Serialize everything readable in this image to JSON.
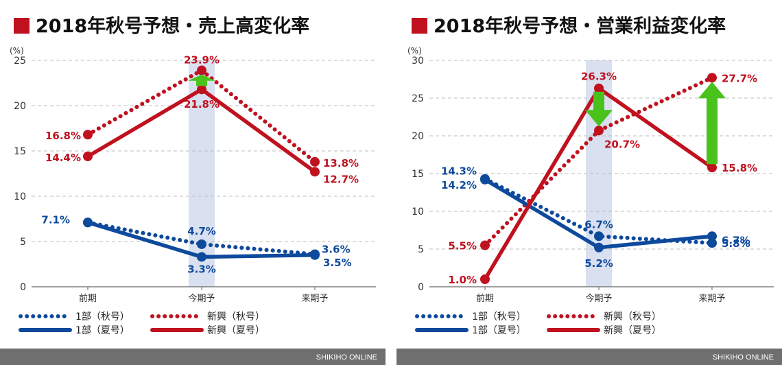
{
  "footer_brand": "SHIKIHO ONLINE",
  "colors": {
    "red": "#c0111f",
    "blue": "#0e4a9c",
    "arrow": "#49c21c",
    "highlight": "#d9e0f0",
    "grid": "#bdbdbd",
    "footer": "#6f6f6f"
  },
  "chart_data": [
    {
      "type": "line",
      "title": "2018年秋号予想・売上高変化率",
      "unit": "(%)",
      "categories": [
        "前期",
        "今期予",
        "来期予"
      ],
      "ylim": [
        0,
        25
      ],
      "yticks": [
        0,
        5,
        10,
        15,
        20,
        25
      ],
      "grid": true,
      "highlight_category": "今期予",
      "series": [
        {
          "name": "1部（秋号）",
          "color": "blue",
          "dash": true,
          "values": [
            7.1,
            4.7,
            3.6
          ],
          "labels": [
            "",
            "4.7%",
            "3.6%"
          ]
        },
        {
          "name": "新興（秋号）",
          "color": "red",
          "dash": true,
          "values": [
            16.8,
            23.9,
            13.8
          ],
          "labels": [
            "16.8%",
            "23.9%",
            "13.8%"
          ]
        },
        {
          "name": "1部（夏号）",
          "color": "blue",
          "dash": false,
          "values": [
            7.1,
            3.3,
            3.5
          ],
          "labels": [
            "7.1%",
            "3.3%",
            "3.5%"
          ]
        },
        {
          "name": "新興（夏号）",
          "color": "red",
          "dash": false,
          "values": [
            14.4,
            21.8,
            12.7
          ],
          "labels": [
            "14.4%",
            "21.8%",
            "12.7%"
          ]
        }
      ],
      "arrows": [
        {
          "category": "今期予",
          "from": 21.8,
          "to": 23.9,
          "direction": "up"
        }
      ]
    },
    {
      "type": "line",
      "title": "2018年秋号予想・営業利益変化率",
      "unit": "(%)",
      "categories": [
        "前期",
        "今期予",
        "来期予"
      ],
      "ylim": [
        0,
        30
      ],
      "yticks": [
        0,
        5,
        10,
        15,
        20,
        25,
        30
      ],
      "grid": true,
      "highlight_category": "今期予",
      "series": [
        {
          "name": "1部（秋号）",
          "color": "blue",
          "dash": true,
          "values": [
            14.3,
            6.7,
            5.8
          ],
          "labels": [
            "14.3%",
            "6.7%",
            "5.8%"
          ]
        },
        {
          "name": "新興（秋号）",
          "color": "red",
          "dash": true,
          "values": [
            5.5,
            20.7,
            27.7
          ],
          "labels": [
            "5.5%",
            "20.7%",
            "27.7%"
          ]
        },
        {
          "name": "1部（夏号）",
          "color": "blue",
          "dash": false,
          "values": [
            14.2,
            5.2,
            6.7
          ],
          "labels": [
            "14.2%",
            "5.2%",
            "6.7%"
          ]
        },
        {
          "name": "新興（夏号）",
          "color": "red",
          "dash": false,
          "values": [
            1.0,
            26.3,
            15.8
          ],
          "labels": [
            "1.0%",
            "26.3%",
            "15.8%"
          ]
        }
      ],
      "arrows": [
        {
          "category": "今期予",
          "from": 26.3,
          "to": 20.7,
          "direction": "down"
        },
        {
          "category": "来期予",
          "from": 15.8,
          "to": 27.7,
          "direction": "up"
        }
      ]
    }
  ]
}
